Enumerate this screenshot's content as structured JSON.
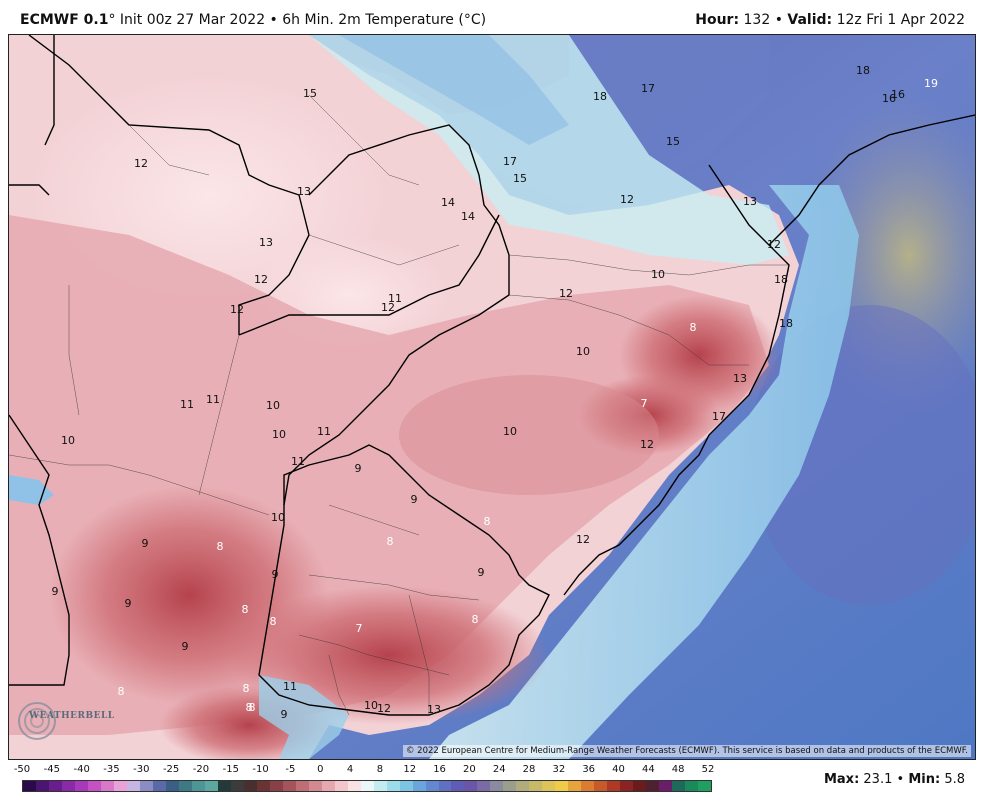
{
  "header": {
    "model": "ECMWF 0.1",
    "init_text": "° Init 00z 27 Mar 2022 • 6h Min. 2m Temperature (°C)",
    "hour_label": "Hour:",
    "hour_value": "132",
    "valid_label": "Valid:",
    "valid_value": "12z Fri 1 Apr 2022"
  },
  "map": {
    "copyright": "© 2022 European Centre for Medium-Range Weather Forecasts (ECMWF). This service is based on data and products of the ECMWF.",
    "logo_text": "WEATHERBELL",
    "colors": {
      "ocean_deep": "#5a66b6",
      "ocean_mid": "#6f8fd0",
      "ocean_light": "#9cc8ea",
      "cyan": "#bfe9f0",
      "land_pale": "#f6d9dc",
      "land_pink": "#eab2b6",
      "land_red": "#cf6f76",
      "land_dark": "#b5424c",
      "border": "#000000"
    },
    "temp_labels": [
      {
        "text": "15",
        "color": "dark"
      },
      {
        "text": "18",
        "color": "dark"
      },
      {
        "text": "17",
        "color": "dark"
      },
      {
        "text": "18",
        "color": "dark"
      },
      {
        "text": "16",
        "color": "dark"
      },
      {
        "text": "16",
        "color": "dark"
      },
      {
        "text": "19",
        "color": "light"
      },
      {
        "text": "12",
        "color": "dark"
      },
      {
        "text": "17",
        "color": "dark"
      },
      {
        "text": "15",
        "color": "dark"
      },
      {
        "text": "15",
        "color": "dark"
      },
      {
        "text": "13",
        "color": "dark"
      },
      {
        "text": "14",
        "color": "dark"
      },
      {
        "text": "14",
        "color": "dark"
      },
      {
        "text": "12",
        "color": "dark"
      },
      {
        "text": "13",
        "color": "dark"
      },
      {
        "text": "13",
        "color": "dark"
      },
      {
        "text": "12",
        "color": "dark"
      },
      {
        "text": "12",
        "color": "dark"
      },
      {
        "text": "10",
        "color": "dark"
      },
      {
        "text": "11",
        "color": "dark"
      },
      {
        "text": "12",
        "color": "dark"
      },
      {
        "text": "12",
        "color": "dark"
      },
      {
        "text": "18",
        "color": "dark"
      },
      {
        "text": "18",
        "color": "dark"
      },
      {
        "text": "8",
        "color": "light"
      },
      {
        "text": "12",
        "color": "dark"
      },
      {
        "text": "10",
        "color": "dark"
      },
      {
        "text": "13",
        "color": "dark"
      },
      {
        "text": "11",
        "color": "dark"
      },
      {
        "text": "11",
        "color": "dark"
      },
      {
        "text": "10",
        "color": "dark"
      },
      {
        "text": "7",
        "color": "light"
      },
      {
        "text": "17",
        "color": "dark"
      },
      {
        "text": "10",
        "color": "dark"
      },
      {
        "text": "10",
        "color": "dark"
      },
      {
        "text": "11",
        "color": "dark"
      },
      {
        "text": "10",
        "color": "dark"
      },
      {
        "text": "12",
        "color": "dark"
      },
      {
        "text": "11",
        "color": "dark"
      },
      {
        "text": "9",
        "color": "dark"
      },
      {
        "text": "9",
        "color": "dark"
      },
      {
        "text": "8",
        "color": "light"
      },
      {
        "text": "10",
        "color": "dark"
      },
      {
        "text": "8",
        "color": "light"
      },
      {
        "text": "12",
        "color": "dark"
      },
      {
        "text": "9",
        "color": "dark"
      },
      {
        "text": "8",
        "color": "light"
      },
      {
        "text": "9",
        "color": "dark"
      },
      {
        "text": "9",
        "color": "dark"
      },
      {
        "text": "9",
        "color": "dark"
      },
      {
        "text": "9",
        "color": "dark"
      },
      {
        "text": "8",
        "color": "light"
      },
      {
        "text": "8",
        "color": "light"
      },
      {
        "text": "7",
        "color": "light"
      },
      {
        "text": "8",
        "color": "light"
      },
      {
        "text": "9",
        "color": "dark"
      },
      {
        "text": "8",
        "color": "light"
      },
      {
        "text": "8",
        "color": "light"
      },
      {
        "text": "8",
        "color": "light"
      },
      {
        "text": "11",
        "color": "dark"
      },
      {
        "text": "8",
        "color": "light"
      },
      {
        "text": "9",
        "color": "dark"
      },
      {
        "text": "10",
        "color": "dark"
      },
      {
        "text": "12",
        "color": "dark"
      },
      {
        "text": "13",
        "color": "dark"
      }
    ]
  },
  "colorbar": {
    "ticks": [
      "-50",
      "-45",
      "-40",
      "-35",
      "-30",
      "-25",
      "-20",
      "-15",
      "-10",
      "-5",
      "0",
      "4",
      "8",
      "12",
      "16",
      "20",
      "24",
      "28",
      "32",
      "36",
      "40",
      "44",
      "48",
      "52"
    ],
    "colors": [
      "#2a0a4a",
      "#4b1470",
      "#6a1e8e",
      "#8a2aa6",
      "#a63ab8",
      "#c452c4",
      "#d878c8",
      "#e8a2d8",
      "#c7b6e4",
      "#8c8cc4",
      "#5a6aa8",
      "#3a5e86",
      "#3e7a86",
      "#4e9696",
      "#5aa8a0",
      "#223a3a",
      "#3c3c3c",
      "#4a2f2f",
      "#6a3434",
      "#8a4046",
      "#a4545a",
      "#be6e74",
      "#d28a90",
      "#e4a8ae",
      "#f2c6ca",
      "#f8e2e4",
      "#eaf6f8",
      "#c2ecf2",
      "#9cdcea",
      "#7cc6e4",
      "#6aa6dc",
      "#6488d0",
      "#6070c2",
      "#5e5cb4",
      "#6a56a8",
      "#7a6aa6",
      "#8a8aa0",
      "#9c9e8c",
      "#b0ac7c",
      "#c6ba6a",
      "#dcc45a",
      "#eecc4a",
      "#e6a43a",
      "#dc7c30",
      "#c65a2a",
      "#ae3a26",
      "#8a2424",
      "#6a1c1c",
      "#4e2030",
      "#6a1e6a",
      "#1e6a5a",
      "#1a8a5a",
      "#20a060"
    ]
  },
  "stats": {
    "max_label": "Max:",
    "max_value": "23.1",
    "min_label": "Min:",
    "min_value": "5.8"
  }
}
